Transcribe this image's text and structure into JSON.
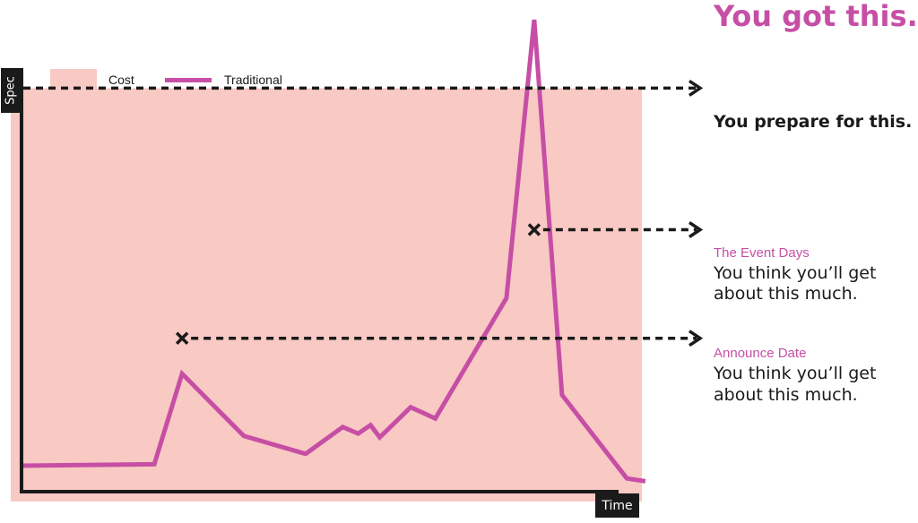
{
  "chart_data": {
    "type": "line",
    "title": "",
    "xlabel": "Time",
    "ylabel": "Spec",
    "legend_position": "top-left",
    "grid": false,
    "colors": {
      "cost": "#f9c9c4",
      "traditional": "#c64fa5",
      "ink": "#1a1a1a"
    },
    "legend": {
      "cost": "Cost",
      "traditional": "Traditional"
    },
    "cost_level": 0.855,
    "series": [
      {
        "name": "Traditional",
        "points": [
          [
            0.0,
            0.055
          ],
          [
            0.215,
            0.058
          ],
          [
            0.26,
            0.25
          ],
          [
            0.36,
            0.118
          ],
          [
            0.46,
            0.08
          ],
          [
            0.52,
            0.137
          ],
          [
            0.545,
            0.123
          ],
          [
            0.565,
            0.141
          ],
          [
            0.58,
            0.115
          ],
          [
            0.63,
            0.179
          ],
          [
            0.67,
            0.155
          ],
          [
            0.785,
            0.41
          ],
          [
            0.83,
            1.0
          ],
          [
            0.875,
            0.205
          ],
          [
            0.98,
            0.028
          ],
          [
            1.01,
            0.022
          ]
        ]
      }
    ],
    "markers": [
      {
        "name": "peak",
        "x": 0.83,
        "y": 1.06
      },
      {
        "name": "event-days",
        "x": 0.83,
        "y": 0.555
      },
      {
        "name": "announce-date",
        "x": 0.26,
        "y": 0.325
      }
    ],
    "annotations": {
      "peak": {
        "title": "You got this."
      },
      "prepare": {
        "title": "You prepare for this."
      },
      "event_days": {
        "caption": "The Event Days",
        "line1": "You think you’ll get",
        "line2": "about this much."
      },
      "announce": {
        "caption": "Announce Date",
        "line1": "You think you’ll get",
        "line2": "about this much."
      }
    }
  }
}
